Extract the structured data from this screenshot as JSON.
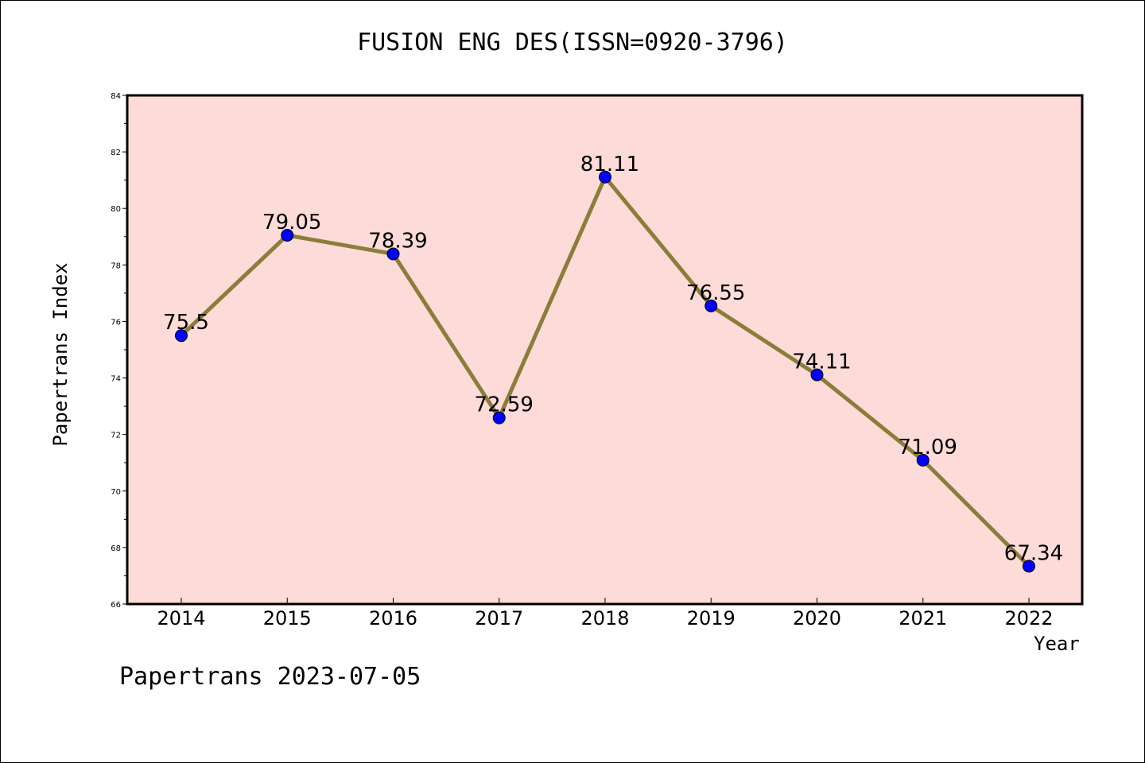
{
  "title": "FUSION ENG DES(ISSN=0920-3796)",
  "footer": "Papertrans 2023-07-05",
  "colors": {
    "plot_background": "#fddbd8",
    "line": "#8b7d3a",
    "marker": "#0000ff"
  },
  "chart_data": {
    "type": "line",
    "title": "FUSION ENG DES(ISSN=0920-3796)",
    "xlabel": "Year",
    "ylabel": "Papertrans Index",
    "categories": [
      "2014",
      "2015",
      "2016",
      "2017",
      "2018",
      "2019",
      "2020",
      "2021",
      "2022"
    ],
    "values": [
      75.5,
      79.05,
      78.39,
      72.59,
      81.11,
      76.55,
      74.11,
      71.09,
      67.34
    ],
    "data_labels": [
      "75.5",
      "79.05",
      "78.39",
      "72.59",
      "81.11",
      "76.55",
      "74.11",
      "71.09",
      "67.34"
    ],
    "ylim": [
      66,
      84
    ],
    "yticks": [
      "66",
      "68",
      "70",
      "72",
      "74",
      "76",
      "78",
      "80",
      "82",
      "84"
    ],
    "grid": false,
    "legend": "none"
  }
}
